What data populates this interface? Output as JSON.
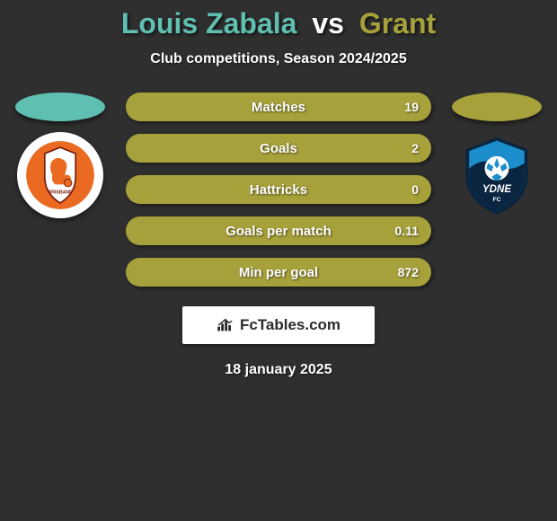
{
  "title": {
    "player1": "Louis Zabala",
    "vs": "vs",
    "player2": "Grant"
  },
  "subtitle": "Club competitions, Season 2024/2025",
  "colors": {
    "p1": "#5fbfb0",
    "p2": "#a7a13b",
    "bg": "#2f2f2f",
    "white": "#ffffff"
  },
  "stats": [
    {
      "label": "Matches",
      "base_color": "#a7a13b",
      "fill_color": "#5fbfb0",
      "fill_pct": 0,
      "value": "19"
    },
    {
      "label": "Goals",
      "base_color": "#a7a13b",
      "fill_color": "#5fbfb0",
      "fill_pct": 0,
      "value": "2"
    },
    {
      "label": "Hattricks",
      "base_color": "#a7a13b",
      "fill_color": "#5fbfb0",
      "fill_pct": 0,
      "value": "0"
    },
    {
      "label": "Goals per match",
      "base_color": "#a7a13b",
      "fill_color": "#5fbfb0",
      "fill_pct": 0,
      "value": "0.11"
    },
    {
      "label": "Min per goal",
      "base_color": "#a7a13b",
      "fill_color": "#5fbfb0",
      "fill_pct": 0,
      "value": "872"
    }
  ],
  "brand": "FcTables.com",
  "date": "18 january 2025",
  "crest_left": {
    "bg": "#ffffff",
    "inner": "#e96a20",
    "accent": "#ffffff"
  },
  "crest_right": {
    "bg_top": "#1b8ecb",
    "bg_dark": "#0a2540",
    "accent": "#ffffff"
  }
}
